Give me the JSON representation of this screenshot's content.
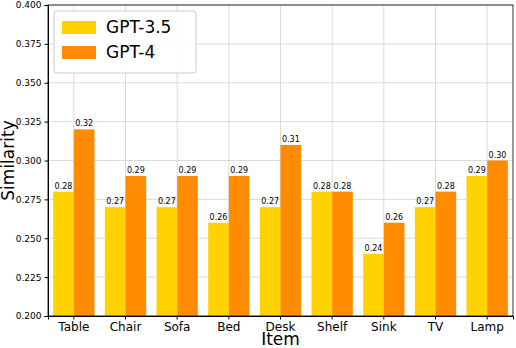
{
  "chart_data": {
    "type": "bar",
    "x_label": "Item",
    "y_label": "Similarity",
    "categories": [
      "Table",
      "Chair",
      "Sofa",
      "Bed",
      "Desk",
      "Shelf",
      "Sink",
      "TV",
      "Lamp"
    ],
    "series": [
      {
        "name": "GPT-3.5",
        "color": "#ffd200",
        "values": [
          0.28,
          0.27,
          0.27,
          0.26,
          0.27,
          0.28,
          0.24,
          0.27,
          0.29
        ],
        "value_labels": [
          "0.28",
          "0.27",
          "0.27",
          "0.26",
          "0.27",
          "0.28",
          "0.24",
          "0.27",
          "0.29"
        ]
      },
      {
        "name": "GPT-4",
        "color": "#ff8c00",
        "values": [
          0.32,
          0.29,
          0.29,
          0.29,
          0.31,
          0.28,
          0.26,
          0.28,
          0.3
        ],
        "value_labels": [
          "0.32",
          "0.29",
          "0.29",
          "0.29",
          "0.31",
          "0.28",
          "0.26",
          "0.28",
          "0.30"
        ]
      }
    ],
    "ylim": [
      0.2,
      0.4
    ],
    "yticks": [
      {
        "value": 0.2,
        "label": "0.200"
      },
      {
        "value": 0.225,
        "label": "0.225"
      },
      {
        "value": 0.25,
        "label": "0.250"
      },
      {
        "value": 0.275,
        "label": "0.275"
      },
      {
        "value": 0.3,
        "label": "0.300"
      },
      {
        "value": 0.325,
        "label": "0.325"
      },
      {
        "value": 0.35,
        "label": "0.350"
      },
      {
        "value": 0.375,
        "label": "0.375"
      },
      {
        "value": 0.4,
        "label": "0.400"
      }
    ],
    "grid": true,
    "legend": "upper left",
    "data_labels": true
  }
}
